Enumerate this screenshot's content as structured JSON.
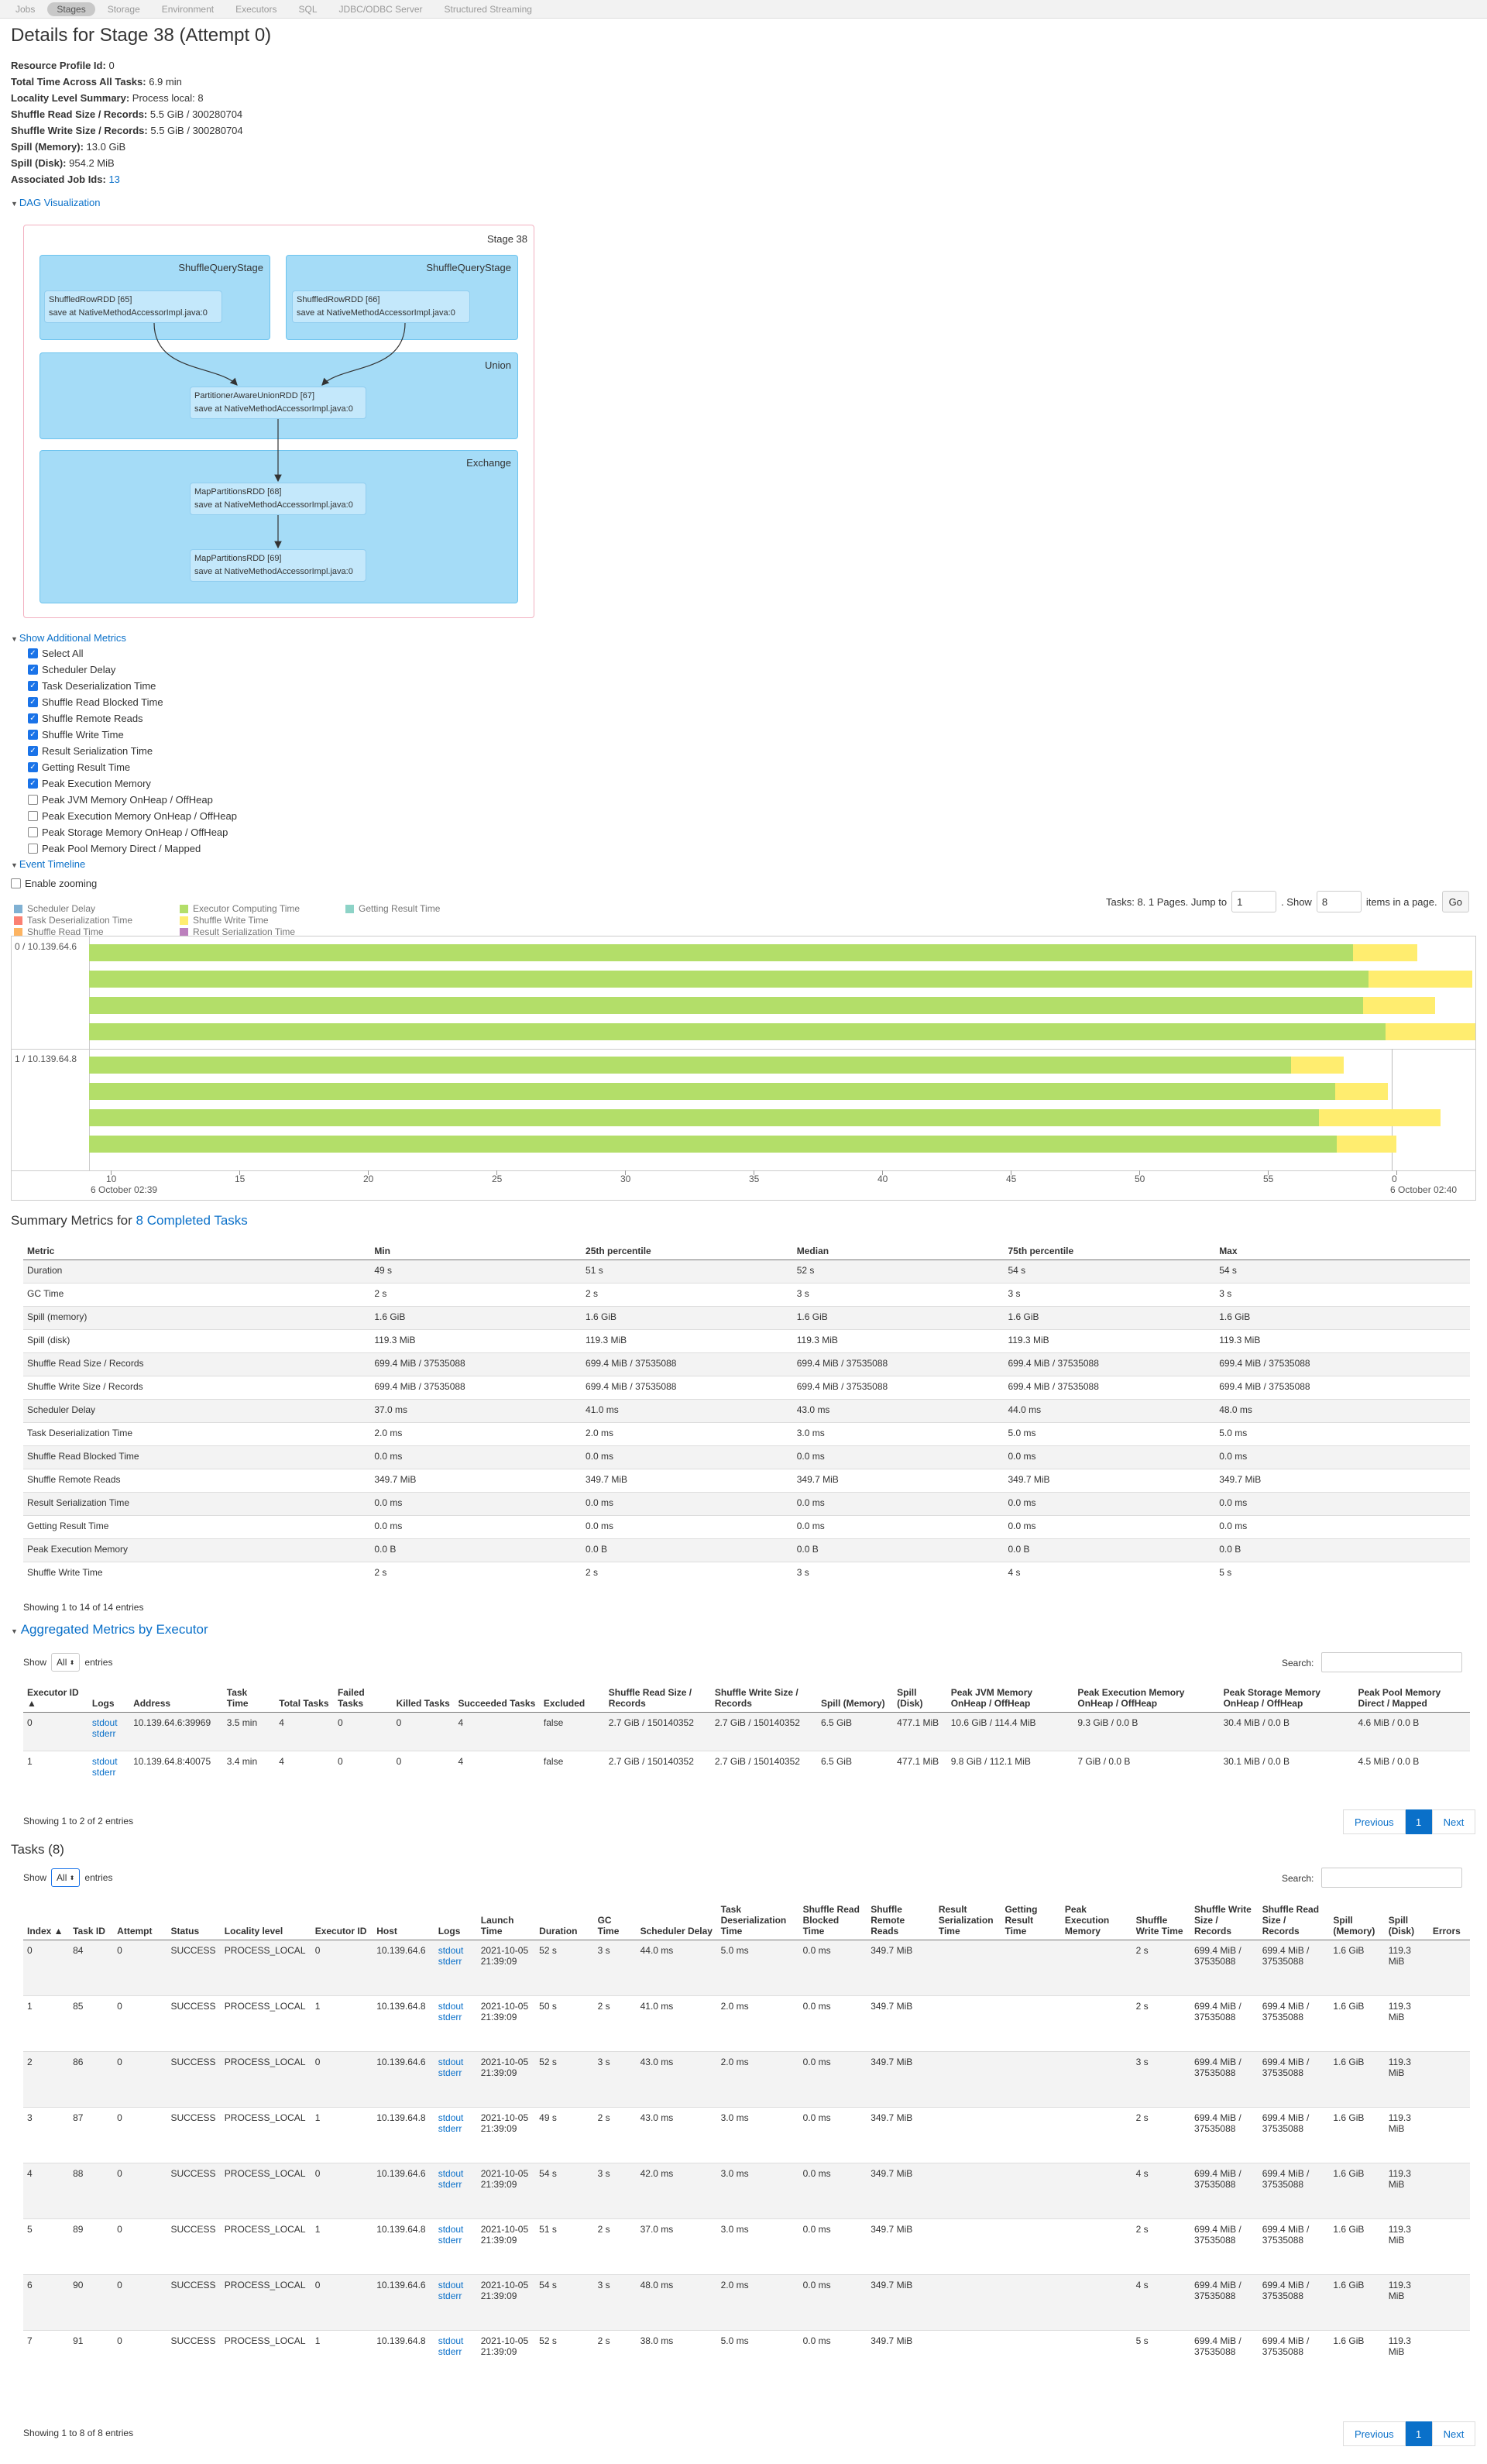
{
  "nav": [
    "Jobs",
    "Stages",
    "Storage",
    "Environment",
    "Executors",
    "SQL",
    "JDBC/ODBC Server",
    "Structured Streaming"
  ],
  "page_title": "Details for Stage 38 (Attempt 0)",
  "summary": [
    {
      "label": "Resource Profile Id:",
      "value": "0"
    },
    {
      "label": "Total Time Across All Tasks:",
      "value": "6.9 min"
    },
    {
      "label": "Locality Level Summary:",
      "value": "Process local: 8"
    },
    {
      "label": "Shuffle Read Size / Records:",
      "value": "5.5 GiB / 300280704"
    },
    {
      "label": "Shuffle Write Size / Records:",
      "value": "5.5 GiB / 300280704"
    },
    {
      "label": "Spill (Memory):",
      "value": "13.0 GiB"
    },
    {
      "label": "Spill (Disk):",
      "value": "954.2 MiB"
    },
    {
      "label": "Associated Job Ids:",
      "value": "13"
    }
  ],
  "dag_toggle": "DAG Visualization",
  "dag": {
    "stage_label": "Stage 38",
    "clusters": [
      "ShuffleQueryStage",
      "ShuffleQueryStage",
      "Union",
      "Exchange"
    ],
    "nodes": [
      {
        "l1": "ShuffledRowRDD [65]",
        "l2": "save at NativeMethodAccessorImpl.java:0"
      },
      {
        "l1": "ShuffledRowRDD [66]",
        "l2": "save at NativeMethodAccessorImpl.java:0"
      },
      {
        "l1": "PartitionerAwareUnionRDD [67]",
        "l2": "save at NativeMethodAccessorImpl.java:0"
      },
      {
        "l1": "MapPartitionsRDD [68]",
        "l2": "save at NativeMethodAccessorImpl.java:0"
      },
      {
        "l1": "MapPartitionsRDD [69]",
        "l2": "save at NativeMethodAccessorImpl.java:0"
      }
    ]
  },
  "metrics_toggle": "Show Additional Metrics",
  "metric_checks": [
    {
      "label": "Select All",
      "checked": true
    },
    {
      "label": "Scheduler Delay",
      "checked": true
    },
    {
      "label": "Task Deserialization Time",
      "checked": true
    },
    {
      "label": "Shuffle Read Blocked Time",
      "checked": true
    },
    {
      "label": "Shuffle Remote Reads",
      "checked": true
    },
    {
      "label": "Shuffle Write Time",
      "checked": true
    },
    {
      "label": "Result Serialization Time",
      "checked": true
    },
    {
      "label": "Getting Result Time",
      "checked": true
    },
    {
      "label": "Peak Execution Memory",
      "checked": true
    },
    {
      "label": "Peak JVM Memory OnHeap / OffHeap",
      "checked": false
    },
    {
      "label": "Peak Execution Memory OnHeap / OffHeap",
      "checked": false
    },
    {
      "label": "Peak Storage Memory OnHeap / OffHeap",
      "checked": false
    },
    {
      "label": "Peak Pool Memory Direct / Mapped",
      "checked": false
    }
  ],
  "timeline_toggle": "Event Timeline",
  "enable_zooming": "Enable zooming",
  "legend": [
    {
      "label": "Scheduler Delay",
      "color": "#80b1d3"
    },
    {
      "label": "Task Deserialization Time",
      "color": "#fb8072"
    },
    {
      "label": "Shuffle Read Time",
      "color": "#fdb462"
    },
    {
      "label": "Executor Computing Time",
      "color": "#b3de69"
    },
    {
      "label": "Shuffle Write Time",
      "color": "#ffed6f"
    },
    {
      "label": "Result Serialization Time",
      "color": "#bc80bd"
    },
    {
      "label": "Getting Result Time",
      "color": "#8dd3c7"
    }
  ],
  "timeline_pager": {
    "text1": "Tasks: 8. 1 Pages. Jump to",
    "jump": "1",
    "text2": ". Show",
    "show": "8",
    "text3": "items in a page.",
    "go": "Go"
  },
  "timeline": {
    "groups": [
      "0 / 10.139.64.6",
      "1 / 10.139.64.8"
    ],
    "ticks": [
      "10",
      "15",
      "20",
      "25",
      "30",
      "35",
      "40",
      "45",
      "50",
      "55",
      "0"
    ],
    "date_left": "6 October 02:39",
    "date_right": "6 October 02:40",
    "tasks": [
      {
        "compute_end": 0.912,
        "write_end": 0.958
      },
      {
        "compute_end": 0.923,
        "write_end": 0.998
      },
      {
        "compute_end": 0.919,
        "write_end": 0.971
      },
      {
        "compute_end": 0.935,
        "write_end": 1.0
      },
      {
        "compute_end": 0.867,
        "write_end": 0.905
      },
      {
        "compute_end": 0.899,
        "write_end": 0.937
      },
      {
        "compute_end": 0.887,
        "write_end": 0.975
      },
      {
        "compute_end": 0.9,
        "write_end": 0.943
      }
    ]
  },
  "summary_metrics": {
    "title_prefix": "Summary Metrics for ",
    "title_link": "8 Completed Tasks",
    "headers": [
      "Metric",
      "Min",
      "25th percentile",
      "Median",
      "75th percentile",
      "Max"
    ],
    "rows": [
      [
        "Duration",
        "49 s",
        "51 s",
        "52 s",
        "54 s",
        "54 s"
      ],
      [
        "GC Time",
        "2 s",
        "2 s",
        "3 s",
        "3 s",
        "3 s"
      ],
      [
        "Spill (memory)",
        "1.6 GiB",
        "1.6 GiB",
        "1.6 GiB",
        "1.6 GiB",
        "1.6 GiB"
      ],
      [
        "Spill (disk)",
        "119.3 MiB",
        "119.3 MiB",
        "119.3 MiB",
        "119.3 MiB",
        "119.3 MiB"
      ],
      [
        "Shuffle Read Size / Records",
        "699.4 MiB / 37535088",
        "699.4 MiB / 37535088",
        "699.4 MiB / 37535088",
        "699.4 MiB / 37535088",
        "699.4 MiB / 37535088"
      ],
      [
        "Shuffle Write Size / Records",
        "699.4 MiB / 37535088",
        "699.4 MiB / 37535088",
        "699.4 MiB / 37535088",
        "699.4 MiB / 37535088",
        "699.4 MiB / 37535088"
      ],
      [
        "Scheduler Delay",
        "37.0 ms",
        "41.0 ms",
        "43.0 ms",
        "44.0 ms",
        "48.0 ms"
      ],
      [
        "Task Deserialization Time",
        "2.0 ms",
        "2.0 ms",
        "3.0 ms",
        "5.0 ms",
        "5.0 ms"
      ],
      [
        "Shuffle Read Blocked Time",
        "0.0 ms",
        "0.0 ms",
        "0.0 ms",
        "0.0 ms",
        "0.0 ms"
      ],
      [
        "Shuffle Remote Reads",
        "349.7 MiB",
        "349.7 MiB",
        "349.7 MiB",
        "349.7 MiB",
        "349.7 MiB"
      ],
      [
        "Result Serialization Time",
        "0.0 ms",
        "0.0 ms",
        "0.0 ms",
        "0.0 ms",
        "0.0 ms"
      ],
      [
        "Getting Result Time",
        "0.0 ms",
        "0.0 ms",
        "0.0 ms",
        "0.0 ms",
        "0.0 ms"
      ],
      [
        "Peak Execution Memory",
        "0.0 B",
        "0.0 B",
        "0.0 B",
        "0.0 B",
        "0.0 B"
      ],
      [
        "Shuffle Write Time",
        "2 s",
        "2 s",
        "3 s",
        "4 s",
        "5 s"
      ]
    ],
    "showing": "Showing 1 to 14 of 14 entries"
  },
  "executors": {
    "title": "Aggregated Metrics by Executor",
    "show_label": "Show",
    "show_value": "All",
    "entries_label": "entries",
    "search_label": "Search:",
    "headers": [
      "Executor ID ▲",
      "Logs",
      "Address",
      "Task Time",
      "Total Tasks",
      "Failed Tasks",
      "Killed Tasks",
      "Succeeded Tasks",
      "Excluded",
      "Shuffle Read Size / Records",
      "Shuffle Write Size / Records",
      "Spill (Memory)",
      "Spill (Disk)",
      "Peak JVM Memory OnHeap / OffHeap",
      "Peak Execution Memory OnHeap / OffHeap",
      "Peak Storage Memory OnHeap / OffHeap",
      "Peak Pool Memory Direct / Mapped"
    ],
    "rows": [
      [
        "0",
        "stdout|stderr",
        "10.139.64.6:39969",
        "3.5 min",
        "4",
        "0",
        "0",
        "4",
        "false",
        "2.7 GiB / 150140352",
        "2.7 GiB / 150140352",
        "6.5 GiB",
        "477.1 MiB",
        "10.6 GiB / 114.4 MiB",
        "9.3 GiB / 0.0 B",
        "30.4 MiB / 0.0 B",
        "4.6 MiB / 0.0 B"
      ],
      [
        "1",
        "stdout|stderr",
        "10.139.64.8:40075",
        "3.4 min",
        "4",
        "0",
        "0",
        "4",
        "false",
        "2.7 GiB / 150140352",
        "2.7 GiB / 150140352",
        "6.5 GiB",
        "477.1 MiB",
        "9.8 GiB / 112.1 MiB",
        "7 GiB / 0.0 B",
        "30.1 MiB / 0.0 B",
        "4.5 MiB / 0.0 B"
      ]
    ],
    "showing": "Showing 1 to 2 of 2 entries",
    "prev": "Previous",
    "page": "1",
    "next": "Next"
  },
  "tasks": {
    "title": "Tasks (8)",
    "show_label": "Show",
    "show_value": "All",
    "entries_label": "entries",
    "search_label": "Search:",
    "headers": [
      "Index ▲",
      "Task ID",
      "Attempt",
      "Status",
      "Locality level",
      "Executor ID",
      "Host",
      "Logs",
      "Launch Time",
      "Duration",
      "GC Time",
      "Scheduler Delay",
      "Task Deserialization Time",
      "Shuffle Read Blocked Time",
      "Shuffle Remote Reads",
      "Result Serialization Time",
      "Getting Result Time",
      "Peak Execution Memory",
      "Shuffle Write Time",
      "Shuffle Write Size / Records",
      "Shuffle Read Size / Records",
      "Spill (Memory)",
      "Spill (Disk)",
      "Errors"
    ],
    "rows": [
      [
        "0",
        "84",
        "0",
        "SUCCESS",
        "PROCESS_LOCAL",
        "0",
        "10.139.64.6",
        "stdout|stderr",
        "2021-10-05 21:39:09",
        "52 s",
        "3 s",
        "44.0 ms",
        "5.0 ms",
        "0.0 ms",
        "349.7 MiB",
        "",
        "",
        "",
        "2 s",
        "699.4 MiB / 37535088",
        "699.4 MiB / 37535088",
        "1.6 GiB",
        "119.3 MiB",
        ""
      ],
      [
        "1",
        "85",
        "0",
        "SUCCESS",
        "PROCESS_LOCAL",
        "1",
        "10.139.64.8",
        "stdout|stderr",
        "2021-10-05 21:39:09",
        "50 s",
        "2 s",
        "41.0 ms",
        "2.0 ms",
        "0.0 ms",
        "349.7 MiB",
        "",
        "",
        "",
        "2 s",
        "699.4 MiB / 37535088",
        "699.4 MiB / 37535088",
        "1.6 GiB",
        "119.3 MiB",
        ""
      ],
      [
        "2",
        "86",
        "0",
        "SUCCESS",
        "PROCESS_LOCAL",
        "0",
        "10.139.64.6",
        "stdout|stderr",
        "2021-10-05 21:39:09",
        "52 s",
        "3 s",
        "43.0 ms",
        "2.0 ms",
        "0.0 ms",
        "349.7 MiB",
        "",
        "",
        "",
        "3 s",
        "699.4 MiB / 37535088",
        "699.4 MiB / 37535088",
        "1.6 GiB",
        "119.3 MiB",
        ""
      ],
      [
        "3",
        "87",
        "0",
        "SUCCESS",
        "PROCESS_LOCAL",
        "1",
        "10.139.64.8",
        "stdout|stderr",
        "2021-10-05 21:39:09",
        "49 s",
        "2 s",
        "43.0 ms",
        "3.0 ms",
        "0.0 ms",
        "349.7 MiB",
        "",
        "",
        "",
        "2 s",
        "699.4 MiB / 37535088",
        "699.4 MiB / 37535088",
        "1.6 GiB",
        "119.3 MiB",
        ""
      ],
      [
        "4",
        "88",
        "0",
        "SUCCESS",
        "PROCESS_LOCAL",
        "0",
        "10.139.64.6",
        "stdout|stderr",
        "2021-10-05 21:39:09",
        "54 s",
        "3 s",
        "42.0 ms",
        "3.0 ms",
        "0.0 ms",
        "349.7 MiB",
        "",
        "",
        "",
        "4 s",
        "699.4 MiB / 37535088",
        "699.4 MiB / 37535088",
        "1.6 GiB",
        "119.3 MiB",
        ""
      ],
      [
        "5",
        "89",
        "0",
        "SUCCESS",
        "PROCESS_LOCAL",
        "1",
        "10.139.64.8",
        "stdout|stderr",
        "2021-10-05 21:39:09",
        "51 s",
        "2 s",
        "37.0 ms",
        "3.0 ms",
        "0.0 ms",
        "349.7 MiB",
        "",
        "",
        "",
        "2 s",
        "699.4 MiB / 37535088",
        "699.4 MiB / 37535088",
        "1.6 GiB",
        "119.3 MiB",
        ""
      ],
      [
        "6",
        "90",
        "0",
        "SUCCESS",
        "PROCESS_LOCAL",
        "0",
        "10.139.64.6",
        "stdout|stderr",
        "2021-10-05 21:39:09",
        "54 s",
        "3 s",
        "48.0 ms",
        "2.0 ms",
        "0.0 ms",
        "349.7 MiB",
        "",
        "",
        "",
        "4 s",
        "699.4 MiB / 37535088",
        "699.4 MiB / 37535088",
        "1.6 GiB",
        "119.3 MiB",
        ""
      ],
      [
        "7",
        "91",
        "0",
        "SUCCESS",
        "PROCESS_LOCAL",
        "1",
        "10.139.64.8",
        "stdout|stderr",
        "2021-10-05 21:39:09",
        "52 s",
        "2 s",
        "38.0 ms",
        "5.0 ms",
        "0.0 ms",
        "349.7 MiB",
        "",
        "",
        "",
        "5 s",
        "699.4 MiB / 37535088",
        "699.4 MiB / 37535088",
        "1.6 GiB",
        "119.3 MiB",
        ""
      ]
    ],
    "showing": "Showing 1 to 8 of 8 entries",
    "prev": "Previous",
    "page": "1",
    "next": "Next"
  }
}
